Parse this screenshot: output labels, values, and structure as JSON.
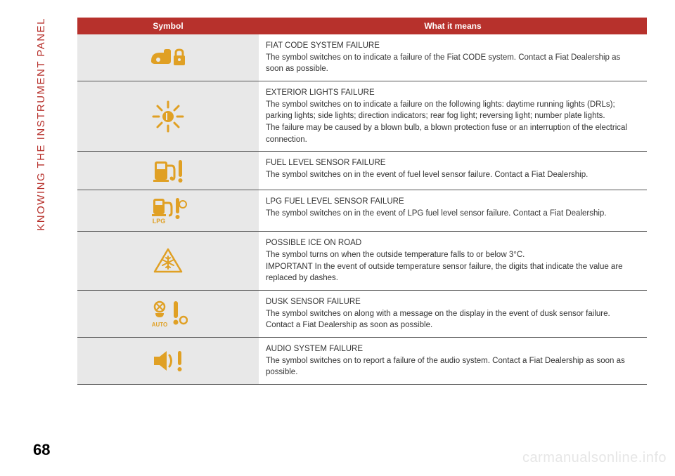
{
  "side_label": "KNOWING THE INSTRUMENT PANEL",
  "page_number": "68",
  "watermark": "carmanualsonline.info",
  "colors": {
    "accent": "#b7312c",
    "icon": "#e0a024",
    "row_bg": "#e8e8e8",
    "border": "#555555"
  },
  "table": {
    "header": {
      "symbol": "Symbol",
      "meaning": "What it means"
    },
    "rows": [
      {
        "icon": "code-system",
        "title": "FIAT CODE SYSTEM FAILURE",
        "body": "The symbol switches on to indicate a failure of the Fiat CODE system. Contact a Fiat Dealership as soon as possible."
      },
      {
        "icon": "exterior-lights",
        "title": "EXTERIOR LIGHTS FAILURE",
        "body": "The symbol switches on to indicate a failure on the following lights: daytime running lights (DRLs); parking lights; side lights; direction indicators; rear fog light; reversing light; number plate lights.\nThe failure may be caused by a blown bulb, a blown protection fuse or an interruption of the electrical connection."
      },
      {
        "icon": "fuel-sensor",
        "title": "FUEL LEVEL SENSOR FAILURE",
        "body": "The symbol switches on in the event of fuel level sensor failure. Contact a Fiat Dealership."
      },
      {
        "icon": "lpg-sensor",
        "title": "LPG FUEL LEVEL SENSOR FAILURE",
        "body": "The symbol switches on in the event of LPG fuel level sensor failure. Contact a Fiat Dealership."
      },
      {
        "icon": "ice-road",
        "title": "POSSIBLE ICE ON ROAD",
        "body": "The symbol turns on when the outside temperature falls to or below 3°C.\nIMPORTANT In the event of outside temperature sensor failure, the digits that indicate the value are replaced by dashes."
      },
      {
        "icon": "dusk-sensor",
        "title": "DUSK SENSOR FAILURE",
        "body": "The symbol switches on along with a message on the display in the event of dusk sensor failure. Contact a Fiat Dealership as soon as possible."
      },
      {
        "icon": "audio-failure",
        "title": "AUDIO SYSTEM FAILURE",
        "body": "The symbol switches on to report a failure of the audio system. Contact a Fiat Dealership as soon as possible."
      }
    ]
  }
}
